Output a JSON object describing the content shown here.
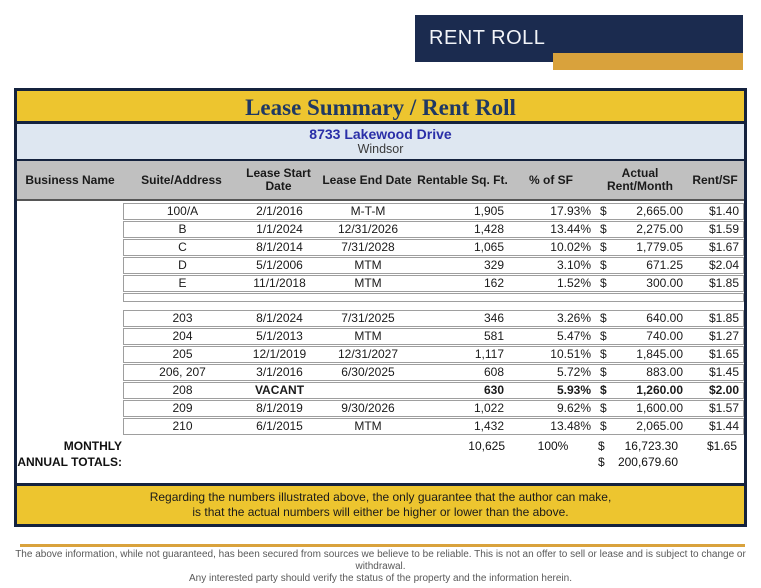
{
  "banner": {
    "title": "RENT ROLL"
  },
  "colors": {
    "navy": "#1B2B4F",
    "border_navy": "#14223E",
    "yellow": "#EDC52F",
    "gold": "#D9A23C",
    "light_blue": "#DEE7F1",
    "header_gray": "#C0C0C0",
    "address_blue": "#2A2FA8",
    "title_navy": "#1F3864"
  },
  "doc": {
    "title": "Lease Summary / Rent Roll",
    "address_line1": "8733 Lakewood Drive",
    "address_line2": "Windsor"
  },
  "table": {
    "headers": {
      "business": "Business Name",
      "suite": "Suite/Address",
      "start": "Lease Start Date",
      "end": "Lease End Date",
      "sqft": "Rentable Sq. Ft.",
      "pct": "% of SF",
      "rent": "Actual Rent/Month",
      "rentsf": "Rent/SF"
    },
    "rows": [
      {
        "suite": "100/A",
        "start": "2/1/2016",
        "end": "M-T-M",
        "sqft": "1,905",
        "pct": "17.93%",
        "dollar": "$",
        "rent": "2,665.00",
        "rentsf": "$1.40"
      },
      {
        "suite": "B",
        "start": "1/1/2024",
        "end": "12/31/2026",
        "sqft": "1,428",
        "pct": "13.44%",
        "dollar": "$",
        "rent": "2,275.00",
        "rentsf": "$1.59"
      },
      {
        "suite": "C",
        "start": "8/1/2014",
        "end": "7/31/2028",
        "sqft": "1,065",
        "pct": "10.02%",
        "dollar": "$",
        "rent": "1,779.05",
        "rentsf": "$1.67"
      },
      {
        "suite": "D",
        "start": "5/1/2006",
        "end": "MTM",
        "sqft": "329",
        "pct": "3.10%",
        "dollar": "$",
        "rent": "671.25",
        "rentsf": "$2.04"
      },
      {
        "suite": "E",
        "start": "11/1/2018",
        "end": "MTM",
        "sqft": "162",
        "pct": "1.52%",
        "dollar": "$",
        "rent": "300.00",
        "rentsf": "$1.85"
      },
      {
        "spacer": true,
        "suite": "",
        "start": "",
        "end": "",
        "sqft": "",
        "pct": "",
        "dollar": "",
        "rent": "",
        "rentsf": ""
      },
      {
        "suite": "203",
        "start": "8/1/2024",
        "end": "7/31/2025",
        "sqft": "346",
        "pct": "3.26%",
        "dollar": "$",
        "rent": "640.00",
        "rentsf": "$1.85"
      },
      {
        "suite": "204",
        "start": "5/1/2013",
        "end": "MTM",
        "sqft": "581",
        "pct": "5.47%",
        "dollar": "$",
        "rent": "740.00",
        "rentsf": "$1.27"
      },
      {
        "suite": "205",
        "start": "12/1/2019",
        "end": "12/31/2027",
        "sqft": "1,117",
        "pct": "10.51%",
        "dollar": "$",
        "rent": "1,845.00",
        "rentsf": "$1.65"
      },
      {
        "suite": "206, 207",
        "start": "3/1/2016",
        "end": "6/30/2025",
        "sqft": "608",
        "pct": "5.72%",
        "dollar": "$",
        "rent": "883.00",
        "rentsf": "$1.45"
      },
      {
        "bold": true,
        "suite": "208",
        "start": "VACANT",
        "end": "",
        "sqft": "630",
        "pct": "5.93%",
        "dollar": "$",
        "rent": "1,260.00",
        "rentsf": "$2.00"
      },
      {
        "suite": "209",
        "start": "8/1/2019",
        "end": "9/30/2026",
        "sqft": "1,022",
        "pct": "9.62%",
        "dollar": "$",
        "rent": "1,600.00",
        "rentsf": "$1.57"
      },
      {
        "suite": "210",
        "start": "6/1/2015",
        "end": "MTM",
        "sqft": "1,432",
        "pct": "13.48%",
        "dollar": "$",
        "rent": "2,065.00",
        "rentsf": "$1.44"
      }
    ],
    "totals": {
      "monthly_label": "MONTHLY",
      "annual_label": "ANNUAL TOTALS:",
      "monthly": {
        "sqft": "10,625",
        "pct": "100%",
        "dollar": "$",
        "rent": "16,723.30",
        "rentsf": "$1.65"
      },
      "annual": {
        "dollar": "$",
        "rent": "200,679.60"
      }
    }
  },
  "footer_note": {
    "line1": "Regarding the numbers illustrated above, the only guarantee that the author can make,",
    "line2": "is that the actual numbers will either be higher or lower than the above."
  },
  "disclaimer": {
    "line1": "The above information, while not guaranteed, has been secured from sources we believe to be reliable. This is not an offer to sell or lease and is subject to change or withdrawal.",
    "line2": "Any interested party should verify the status of the property and the information herein."
  }
}
